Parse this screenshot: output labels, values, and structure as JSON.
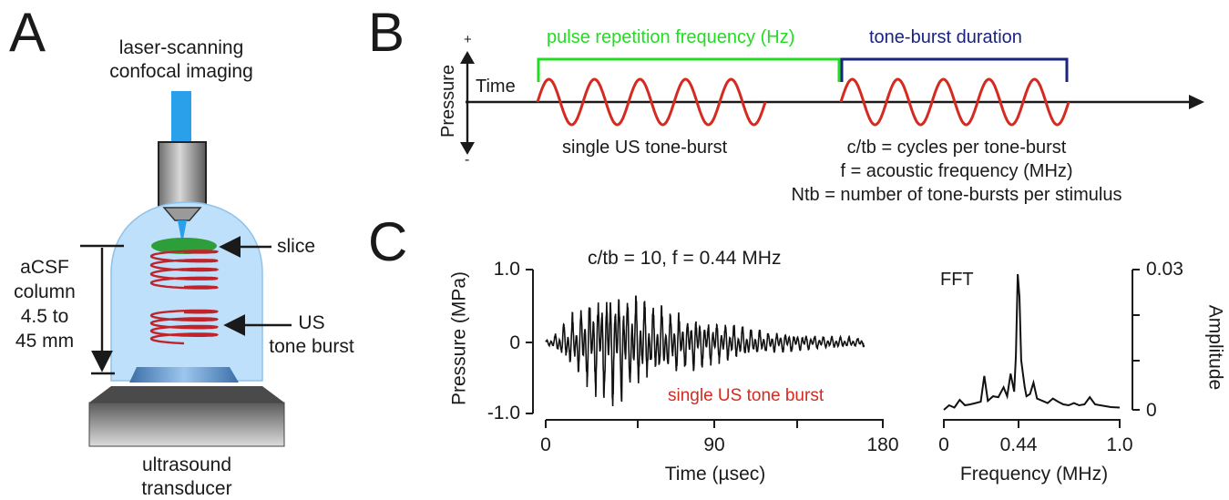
{
  "panels": {
    "a": {
      "letter": "A",
      "imaging_line1": "laser-scanning",
      "imaging_line2": "confocal imaging",
      "slice_label": "slice",
      "acsf_line1": "aCSF",
      "acsf_line2": "column",
      "acsf_line3": "4.5 to",
      "acsf_line4": "45 mm",
      "us_line1": "US",
      "us_line2": "tone burst",
      "transducer_line1": "ultrasound",
      "transducer_line2": "transducer"
    },
    "b": {
      "letter": "B",
      "prf_label": "pulse repetition frequency (Hz)",
      "tbd_label": "tone-burst duration",
      "pressure_label": "Pressure",
      "plus": "+",
      "minus": "-",
      "time_label": "Time",
      "single_label": "single US tone-burst",
      "def_ctb": "c/tb = cycles per tone-burst",
      "def_f": "f = acoustic frequency (MHz)",
      "def_ntb": "Ntb = number of tone-bursts per stimulus"
    },
    "c": {
      "letter": "C",
      "plot_title": "c/tb = 10, f = 0.44 MHz",
      "trace_label": "single US tone burst",
      "fft_label": "FFT"
    }
  },
  "colors": {
    "green": "#22dd22",
    "navy": "#1a237e",
    "wave_red": "#d42a20",
    "trace": "#111111",
    "water": "#bfe0fa",
    "beam": "#2aa0ea",
    "slice": "#2e9e3a",
    "spring": "#c0242a"
  },
  "chart_data": [
    {
      "type": "line",
      "title": "c/tb = 10, f = 0.44 MHz",
      "xlabel": "Time (µsec)",
      "ylabel": "Pressure (MPa)",
      "xlim": [
        0,
        180
      ],
      "ylim": [
        -1.0,
        1.0
      ],
      "x_ticks": [
        "0",
        "90",
        "180"
      ],
      "y_ticks": [
        "1.0",
        "0",
        "-1.0"
      ],
      "series": [
        {
          "name": "single US tone burst",
          "x": [
            0,
            5,
            10,
            15,
            20,
            25,
            30,
            35,
            40,
            45,
            50,
            55,
            60,
            65,
            70,
            75,
            80,
            85,
            90,
            95,
            100,
            105,
            110,
            115,
            120,
            125,
            130,
            135,
            140,
            145,
            150,
            155,
            160,
            165,
            170
          ],
          "envelope": [
            0.02,
            0.1,
            0.25,
            0.38,
            0.48,
            0.62,
            0.7,
            0.72,
            0.75,
            0.68,
            0.6,
            0.52,
            0.45,
            0.42,
            0.38,
            0.36,
            0.34,
            0.3,
            0.28,
            0.25,
            0.22,
            0.2,
            0.18,
            0.16,
            0.14,
            0.13,
            0.12,
            0.11,
            0.1,
            0.09,
            0.08,
            0.08,
            0.07,
            0.06,
            0.05
          ]
        }
      ]
    },
    {
      "type": "line",
      "title": "FFT",
      "xlabel": "Frequency (MHz)",
      "ylabel": "Amplitude",
      "xlim": [
        0,
        1.0
      ],
      "ylim": [
        0,
        0.03
      ],
      "x_ticks": [
        "0",
        "0.44",
        "1.0"
      ],
      "y_ticks": [
        "0.03",
        "0"
      ],
      "series": [
        {
          "name": "FFT",
          "x": [
            0.0,
            0.03,
            0.06,
            0.09,
            0.12,
            0.15,
            0.18,
            0.21,
            0.23,
            0.25,
            0.28,
            0.31,
            0.34,
            0.36,
            0.38,
            0.4,
            0.41,
            0.42,
            0.43,
            0.44,
            0.45,
            0.46,
            0.47,
            0.49,
            0.51,
            0.53,
            0.56,
            0.59,
            0.62,
            0.65,
            0.68,
            0.71,
            0.74,
            0.77,
            0.8,
            0.83,
            0.86,
            0.89,
            0.92,
            0.95,
            1.0
          ],
          "y": [
            0.0,
            0.001,
            0.0005,
            0.0022,
            0.001,
            0.0012,
            0.0015,
            0.0018,
            0.0075,
            0.002,
            0.003,
            0.0028,
            0.005,
            0.003,
            0.008,
            0.004,
            0.012,
            0.03,
            0.025,
            0.011,
            0.008,
            0.005,
            0.003,
            0.0035,
            0.006,
            0.0025,
            0.002,
            0.0015,
            0.0025,
            0.0018,
            0.0012,
            0.001,
            0.0015,
            0.001,
            0.0012,
            0.0028,
            0.0012,
            0.001,
            0.0008,
            0.0006,
            0.0005
          ]
        }
      ]
    }
  ]
}
